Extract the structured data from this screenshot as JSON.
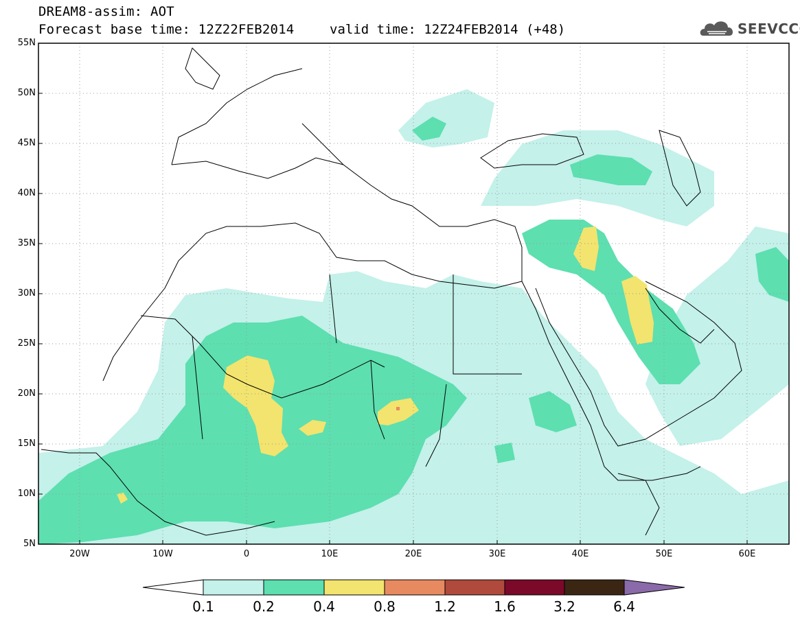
{
  "header": {
    "title": "DREAM8-assim: AOT",
    "base_time": "Forecast base time: 12Z22FEB2014",
    "valid_time": "valid time: 12Z24FEB2014 (+48)",
    "logo_text": "SEEVCCC",
    "logo_icon": "cloud-icon"
  },
  "map": {
    "lat_labels": [
      "55N",
      "50N",
      "45N",
      "40N",
      "35N",
      "30N",
      "25N",
      "20N",
      "15N",
      "10N",
      "5N"
    ],
    "lon_labels": [
      "20W",
      "10W",
      "0",
      "10E",
      "20E",
      "30E",
      "40E",
      "50E",
      "60E"
    ],
    "lon_range": [
      -25,
      65
    ],
    "lat_range": [
      5,
      55
    ]
  },
  "colorbar": {
    "labels": [
      "0.1",
      "0.2",
      "0.4",
      "0.8",
      "1.2",
      "1.6",
      "3.2",
      "6.4"
    ],
    "colors": [
      "#ffffff",
      "#c4f1ea",
      "#5ddfb0",
      "#f2e46e",
      "#e88a5f",
      "#b04a3c",
      "#7b0a2a",
      "#3b2614",
      "#8a6aa8"
    ]
  }
}
